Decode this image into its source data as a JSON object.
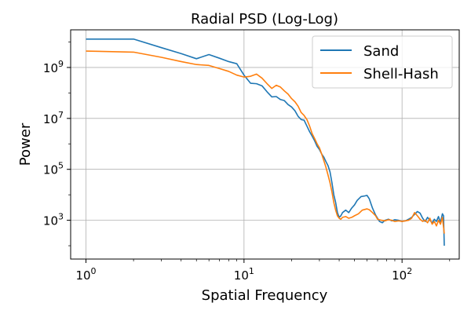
{
  "chart_data": {
    "type": "line",
    "title": "Radial PSD (Log-Log)",
    "xlabel": "Spatial Frequency",
    "ylabel": "Power",
    "xscale": "log",
    "yscale": "log",
    "xlim": [
      0.8,
      230
    ],
    "ylim": [
      30,
      30000000000.0
    ],
    "grid": true,
    "legend": "top-right",
    "x_ticks": [
      {
        "value": 1,
        "base": "10",
        "exp": "0"
      },
      {
        "value": 10,
        "base": "10",
        "exp": "1"
      },
      {
        "value": 100,
        "base": "10",
        "exp": "2"
      }
    ],
    "y_ticks": [
      {
        "value": 1000,
        "base": "10",
        "exp": "3"
      },
      {
        "value": 100000,
        "base": "10",
        "exp": "5"
      },
      {
        "value": 10000000,
        "base": "10",
        "exp": "7"
      },
      {
        "value": 1000000000,
        "base": "10",
        "exp": "9"
      }
    ],
    "series": [
      {
        "name": "Sand",
        "color": "#1f77b4",
        "points": [
          [
            1,
            13000000000.0
          ],
          [
            2,
            13000000000.0
          ],
          [
            3,
            6000000000.0
          ],
          [
            4,
            3500000000.0
          ],
          [
            5,
            2200000000.0
          ],
          [
            6,
            3200000000.0
          ],
          [
            7,
            2300000000.0
          ],
          [
            8,
            1700000000.0
          ],
          [
            9,
            1400000000.0
          ],
          [
            10,
            500000000.0
          ],
          [
            11,
            240000000.0
          ],
          [
            12,
            230000000.0
          ],
          [
            13,
            190000000.0
          ],
          [
            14,
            110000000.0
          ],
          [
            15,
            70000000.0
          ],
          [
            16,
            72000000.0
          ],
          [
            17,
            55000000.0
          ],
          [
            18,
            50000000.0
          ],
          [
            19,
            35000000.0
          ],
          [
            20,
            28000000.0
          ],
          [
            21,
            20000000.0
          ],
          [
            22,
            12000000.0
          ],
          [
            23,
            9000000.0
          ],
          [
            24,
            8500000.0
          ],
          [
            25,
            5000000.0
          ],
          [
            26,
            3000000.0
          ],
          [
            27,
            2000000.0
          ],
          [
            28,
            1300000.0
          ],
          [
            29,
            800000.0
          ],
          [
            30,
            600000.0
          ],
          [
            31,
            400000.0
          ],
          [
            32,
            300000.0
          ],
          [
            33,
            200000.0
          ],
          [
            34,
            140000.0
          ],
          [
            35,
            80000.0
          ],
          [
            36,
            30000.0
          ],
          [
            37,
            10000.0
          ],
          [
            38,
            5000.0
          ],
          [
            39,
            2000.0
          ],
          [
            40,
            1300.0
          ],
          [
            41,
            1500.0
          ],
          [
            42,
            2000.0
          ],
          [
            44,
            2500.0
          ],
          [
            46,
            2000.0
          ],
          [
            48,
            3000.0
          ],
          [
            50,
            4000.0
          ],
          [
            52,
            6000.0
          ],
          [
            55,
            8500.0
          ],
          [
            58,
            9000.0
          ],
          [
            60,
            9500.0
          ],
          [
            62,
            7000.0
          ],
          [
            65,
            3000.0
          ],
          [
            68,
            1600.0
          ],
          [
            70,
            1200.0
          ],
          [
            72,
            900
          ],
          [
            75,
            800
          ],
          [
            78,
            1000
          ],
          [
            82,
            1100
          ],
          [
            86,
            950
          ],
          [
            90,
            1050
          ],
          [
            95,
            1000
          ],
          [
            100,
            900
          ],
          [
            105,
            950
          ],
          [
            110,
            1100
          ],
          [
            115,
            1300
          ],
          [
            120,
            1700
          ],
          [
            125,
            2200
          ],
          [
            130,
            1900
          ],
          [
            135,
            1200
          ],
          [
            140,
            900
          ],
          [
            145,
            1300
          ],
          [
            150,
            1000
          ],
          [
            155,
            800
          ],
          [
            160,
            1100
          ],
          [
            165,
            900
          ],
          [
            170,
            1400
          ],
          [
            175,
            800
          ],
          [
            180,
            1800
          ],
          [
            183,
            1500
          ],
          [
            185,
            100
          ]
        ]
      },
      {
        "name": "Shell-Hash",
        "color": "#ff7f0e",
        "points": [
          [
            1,
            4400000000.0
          ],
          [
            2,
            4000000000.0
          ],
          [
            3,
            2500000000.0
          ],
          [
            4,
            1700000000.0
          ],
          [
            5,
            1300000000.0
          ],
          [
            6,
            1200000000.0
          ],
          [
            7,
            900000000.0
          ],
          [
            8,
            700000000.0
          ],
          [
            9,
            500000000.0
          ],
          [
            10,
            420000000.0
          ],
          [
            11,
            450000000.0
          ],
          [
            12,
            550000000.0
          ],
          [
            13,
            380000000.0
          ],
          [
            14,
            230000000.0
          ],
          [
            15,
            150000000.0
          ],
          [
            16,
            200000000.0
          ],
          [
            17,
            170000000.0
          ],
          [
            18,
            120000000.0
          ],
          [
            19,
            90000000.0
          ],
          [
            20,
            60000000.0
          ],
          [
            21,
            45000000.0
          ],
          [
            22,
            30000000.0
          ],
          [
            23,
            17000000.0
          ],
          [
            24,
            13000000.0
          ],
          [
            25,
            9000000.0
          ],
          [
            26,
            5000000.0
          ],
          [
            27,
            2500000.0
          ],
          [
            28,
            1600000.0
          ],
          [
            29,
            1000000.0
          ],
          [
            30,
            700000.0
          ],
          [
            31,
            400000.0
          ],
          [
            32,
            220000.0
          ],
          [
            33,
            120000.0
          ],
          [
            34,
            60000.0
          ],
          [
            35,
            30000.0
          ],
          [
            36,
            13000.0
          ],
          [
            37,
            5000.0
          ],
          [
            38,
            2500.0
          ],
          [
            39,
            1500.0
          ],
          [
            40,
            1200.0
          ],
          [
            41,
            1100.0
          ],
          [
            42,
            1300.0
          ],
          [
            44,
            1400.0
          ],
          [
            46,
            1200.0
          ],
          [
            48,
            1300.0
          ],
          [
            50,
            1500.0
          ],
          [
            53,
            1800.0
          ],
          [
            56,
            2500.0
          ],
          [
            60,
            2800.0
          ],
          [
            62,
            2600.0
          ],
          [
            65,
            2000.0
          ],
          [
            68,
            1500.0
          ],
          [
            70,
            1100.0
          ],
          [
            74,
            1000
          ],
          [
            78,
            950
          ],
          [
            82,
            1050
          ],
          [
            86,
            1000
          ],
          [
            90,
            900
          ],
          [
            95,
            950
          ],
          [
            100,
            900
          ],
          [
            105,
            950
          ],
          [
            110,
            1000
          ],
          [
            115,
            1200
          ],
          [
            120,
            2000
          ],
          [
            125,
            1500
          ],
          [
            130,
            1100
          ],
          [
            135,
            900
          ],
          [
            140,
            1000
          ],
          [
            145,
            800
          ],
          [
            150,
            1200
          ],
          [
            155,
            700
          ],
          [
            160,
            900
          ],
          [
            165,
            600
          ],
          [
            170,
            1000
          ],
          [
            175,
            700
          ],
          [
            180,
            1300
          ],
          [
            185,
            300
          ]
        ]
      }
    ]
  }
}
